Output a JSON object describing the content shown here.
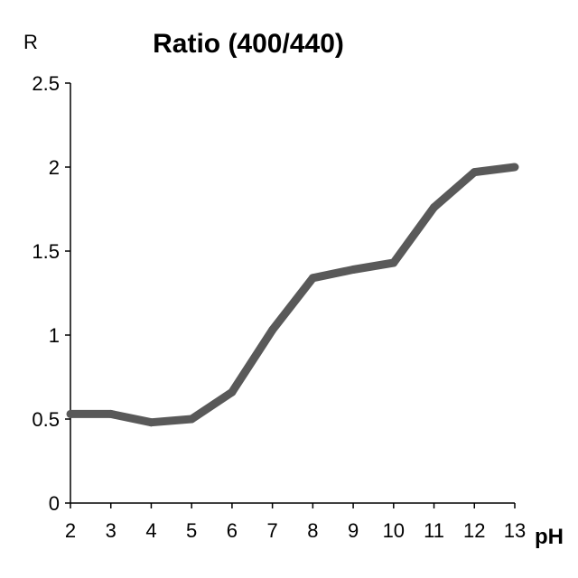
{
  "chart_data": {
    "type": "line",
    "title": "Ratio (400/440)",
    "ylabel": "R",
    "xlabel": "pH",
    "x": [
      2,
      3,
      4,
      5,
      6,
      7,
      8,
      9,
      10,
      11,
      12,
      13
    ],
    "series": [
      {
        "values": [
          0.53,
          0.53,
          0.48,
          0.5,
          0.66,
          1.03,
          1.34,
          1.39,
          1.43,
          1.76,
          1.97,
          2.0
        ],
        "color": "#595959"
      }
    ],
    "xlim": [
      2,
      13
    ],
    "ylim": [
      0,
      2.5
    ],
    "xticks": [
      "2",
      "3",
      "4",
      "5",
      "6",
      "7",
      "8",
      "9",
      "10",
      "11",
      "12",
      "13"
    ],
    "yticks": [
      "0",
      "0.5",
      "1",
      "1.5",
      "2",
      "2.5"
    ],
    "grid": false,
    "legend": "none"
  }
}
